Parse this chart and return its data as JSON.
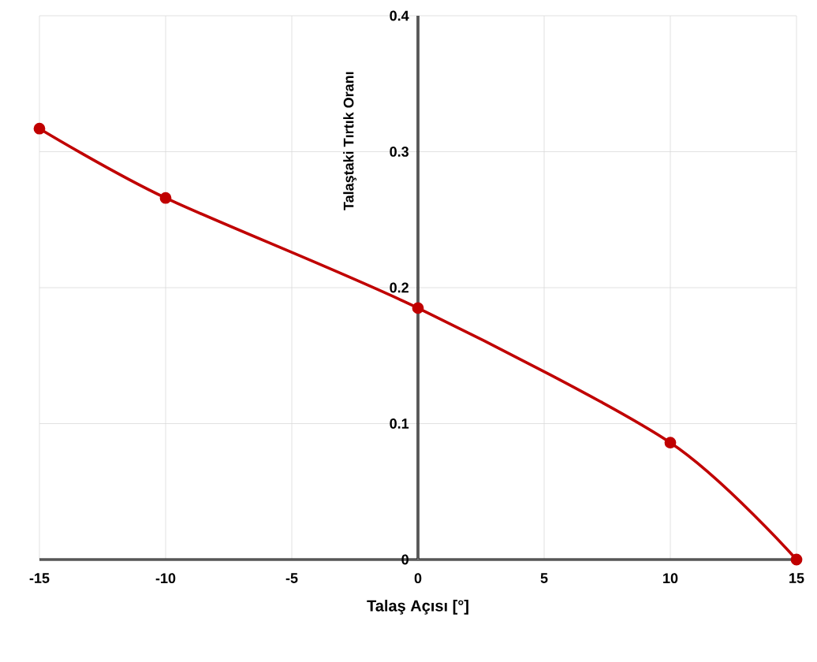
{
  "chart_data": {
    "type": "line",
    "xlabel": "Talaş Açısı [°]",
    "ylabel": "Talaştaki Tırtık Oranı",
    "x": [
      -15,
      -10,
      0,
      10,
      15
    ],
    "series": [
      {
        "color": "#c00000",
        "values": [
          0.317,
          0.266,
          0.185,
          0.086,
          0
        ]
      }
    ],
    "xlim": [
      -15,
      15
    ],
    "xticks": [
      -15,
      -10,
      -5,
      0,
      5,
      10,
      15
    ],
    "ylim": [
      0,
      0.4
    ],
    "yticks": [
      0,
      0.1,
      0.2,
      0.3,
      0.4
    ],
    "grid": true,
    "marker": "circle",
    "line_style": "solid"
  }
}
